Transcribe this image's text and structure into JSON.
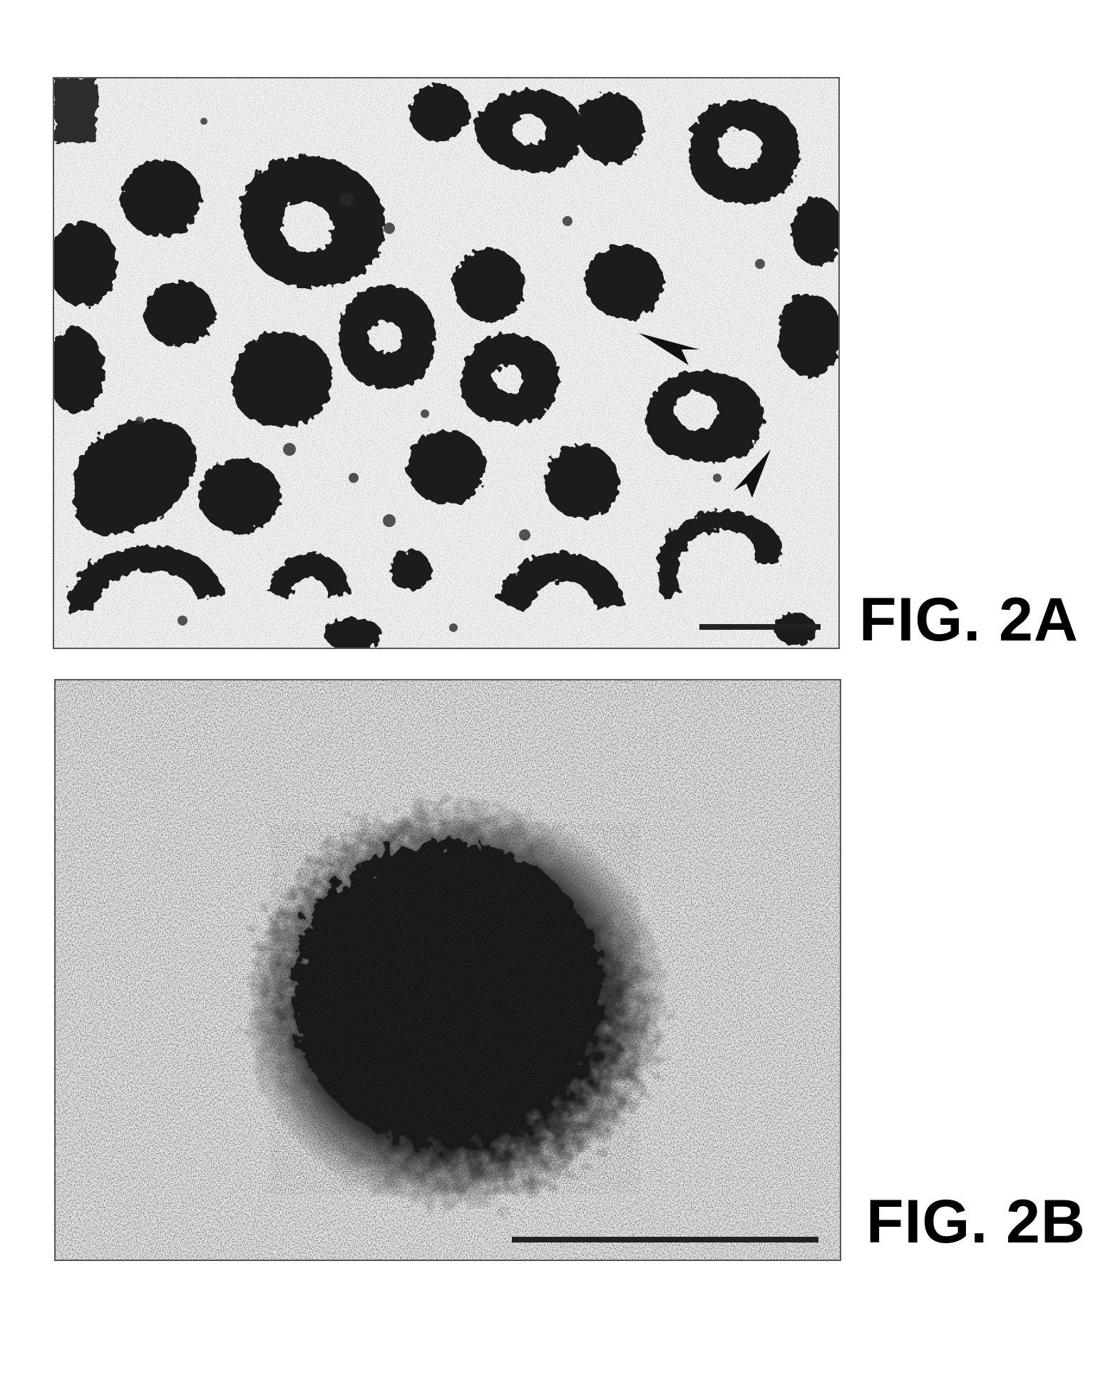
{
  "figure": {
    "panel_a": {
      "label": "FIG. 2A",
      "image_kind": "electron micrograph of scattered round particles"
    },
    "panel_b": {
      "label": "FIG. 2B",
      "image_kind": "electron micrograph of a single particle"
    }
  },
  "colors": {
    "ink": "#000000",
    "particle": "#1b1b1b",
    "background": "#f4f4f4"
  }
}
